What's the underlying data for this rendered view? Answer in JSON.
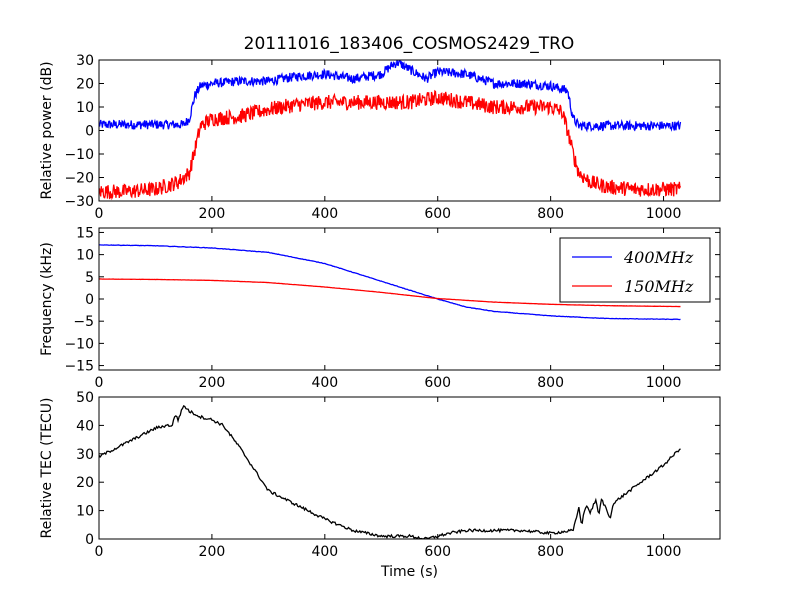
{
  "title": "20111016_183406_COSMOS2429_TRO",
  "colors": {
    "blue": "#0000ff",
    "red": "#ff0000",
    "black": "#000000"
  },
  "chart_data": [
    {
      "type": "line",
      "ylabel": "Relative power (dB)",
      "xlim": [
        0,
        1100
      ],
      "ylim": [
        -30,
        30
      ],
      "xticks": [
        0,
        200,
        400,
        600,
        800,
        1000
      ],
      "yticks": [
        -30,
        -20,
        -10,
        0,
        10,
        20,
        30
      ],
      "series": [
        {
          "color": "#0000ff",
          "noise": 2.0,
          "x": [
            0,
            50,
            100,
            150,
            160,
            170,
            180,
            200,
            250,
            300,
            350,
            400,
            450,
            500,
            520,
            530,
            550,
            580,
            600,
            650,
            700,
            750,
            800,
            830,
            840,
            850,
            900,
            950,
            1000,
            1030
          ],
          "y": [
            2.5,
            2.5,
            2.5,
            2.5,
            5,
            15,
            19,
            20,
            21,
            21,
            23,
            24,
            22,
            24,
            28,
            29,
            26,
            22,
            25,
            24,
            20,
            20,
            19,
            17,
            5,
            2,
            2,
            2,
            2,
            2
          ]
        },
        {
          "color": "#ff0000",
          "noise": 3.2,
          "x": [
            0,
            50,
            100,
            140,
            150,
            160,
            170,
            180,
            200,
            250,
            300,
            350,
            400,
            450,
            500,
            550,
            600,
            650,
            700,
            750,
            800,
            820,
            830,
            840,
            850,
            870,
            900,
            950,
            1000,
            1030
          ],
          "y": [
            -26,
            -26,
            -25,
            -22,
            -20,
            -18,
            -8,
            2,
            5,
            6,
            9,
            11,
            12,
            12,
            12,
            12,
            14,
            12,
            10,
            10,
            10,
            8,
            0,
            -10,
            -18,
            -22,
            -24,
            -25,
            -25,
            -25
          ]
        }
      ]
    },
    {
      "type": "line",
      "ylabel": "Frequency (kHz)",
      "xlim": [
        0,
        1100
      ],
      "ylim": [
        -16,
        16
      ],
      "xticks": [
        0,
        200,
        400,
        600,
        800,
        1000
      ],
      "yticks": [
        -15,
        -10,
        -5,
        0,
        5,
        10,
        15
      ],
      "legend": {
        "position": "upper right",
        "entries": [
          "400MHz",
          "150MHz"
        ]
      },
      "series": [
        {
          "color": "#0000ff",
          "noise": 0.05,
          "x": [
            0,
            100,
            200,
            300,
            400,
            450,
            500,
            550,
            600,
            650,
            700,
            800,
            900,
            1030
          ],
          "y": [
            12.2,
            12,
            11.5,
            10.5,
            8,
            6,
            4,
            2,
            0,
            -1.8,
            -2.8,
            -3.8,
            -4.4,
            -4.6
          ]
        },
        {
          "color": "#ff0000",
          "noise": 0.02,
          "x": [
            0,
            100,
            200,
            300,
            400,
            500,
            600,
            700,
            800,
            900,
            1030
          ],
          "y": [
            4.5,
            4.4,
            4.2,
            3.7,
            2.7,
            1.5,
            0.1,
            -0.7,
            -1.2,
            -1.5,
            -1.7
          ]
        }
      ]
    },
    {
      "type": "line",
      "ylabel": "Relative TEC (TECU)",
      "xlabel": "Time (s)",
      "xlim": [
        0,
        1100
      ],
      "ylim": [
        0,
        50
      ],
      "xticks": [
        0,
        200,
        400,
        600,
        800,
        1000
      ],
      "yticks": [
        0,
        10,
        20,
        30,
        40,
        50
      ],
      "series": [
        {
          "color": "#000000",
          "noise": 0.5,
          "x": [
            0,
            20,
            50,
            80,
            100,
            120,
            130,
            135,
            140,
            150,
            160,
            170,
            180,
            200,
            220,
            250,
            280,
            300,
            350,
            400,
            450,
            500,
            550,
            580,
            600,
            620,
            650,
            700,
            750,
            800,
            840,
            850,
            855,
            860,
            865,
            870,
            880,
            885,
            890,
            900,
            905,
            910,
            920,
            940,
            960,
            980,
            1000,
            1020,
            1030
          ],
          "y": [
            29,
            31,
            34,
            37,
            39,
            40,
            40,
            44,
            42,
            47,
            45,
            44,
            43,
            42,
            40,
            32,
            23,
            17,
            12,
            7,
            3,
            1,
            1,
            0,
            1,
            2,
            3,
            3,
            3,
            2,
            3,
            11,
            5,
            10,
            12,
            9,
            14,
            8,
            14,
            10,
            7,
            12,
            14,
            17,
            20,
            23,
            26,
            30,
            32
          ]
        }
      ]
    }
  ]
}
